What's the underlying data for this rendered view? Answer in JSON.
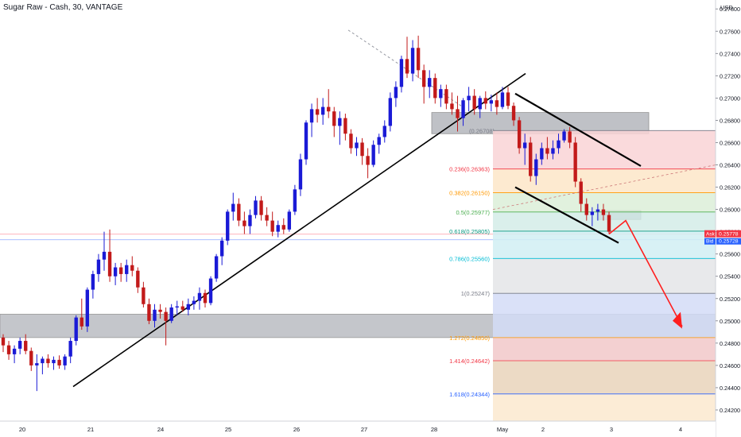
{
  "header": {
    "title": "Sugar Raw - Cash, 30, VANTAGE"
  },
  "price_axis": {
    "currency": "USD",
    "ticks": [
      "0.27800",
      "0.27600",
      "0.27400",
      "0.27200",
      "0.27000",
      "0.26800",
      "0.26600",
      "0.26400",
      "0.26200",
      "0.26000",
      "0.25800",
      "0.25600",
      "0.25400",
      "0.25200",
      "0.25000",
      "0.24800",
      "0.24600",
      "0.24400",
      "0.24200"
    ],
    "ask_label": "Ask",
    "ask_value": "0.25778",
    "bid_label": "Bid",
    "bid_value": "0.25728"
  },
  "time_axis": {
    "ticks": [
      "20",
      "21",
      "24",
      "25",
      "26",
      "27",
      "28",
      "May",
      "2",
      "3",
      "4"
    ]
  },
  "fib_labels": [
    {
      "text": "0.236(0.26363)",
      "color": "#f23645"
    },
    {
      "text": "0.382(0.26150)",
      "color": "#ff9800"
    },
    {
      "text": "0.5(0.25977)",
      "color": "#4caf50"
    },
    {
      "text": "0.618(0.25805)",
      "color": "#089981"
    },
    {
      "text": "0.786(0.25560)",
      "color": "#00bcd4"
    },
    {
      "text": "1(0.25247)",
      "color": "#787b86"
    },
    {
      "text": "1.272(0.24850)",
      "color": "#ff9800"
    },
    {
      "text": "1.414(0.24642)",
      "color": "#f23645"
    },
    {
      "text": "1.618(0.24344)",
      "color": "#2962ff"
    }
  ],
  "zone_label": "(0.26708)",
  "colors": {
    "up": "#1a1ad6",
    "down": "#c21a1a",
    "arrow": "#ff1f1f",
    "zone": "#9598a1"
  },
  "chart_data": {
    "type": "candlestick",
    "title": "Sugar Raw - Cash, 30, VANTAGE",
    "ylim": [
      0.241,
      0.2788
    ],
    "x_labels": [
      "20",
      "21",
      "24",
      "25",
      "26",
      "27",
      "28",
      "May",
      "2",
      "3",
      "4"
    ],
    "candles_ohlc": [
      [
        0.2485,
        0.2488,
        0.2472,
        0.2478
      ],
      [
        0.2478,
        0.2482,
        0.2465,
        0.247
      ],
      [
        0.247,
        0.2478,
        0.2462,
        0.2475
      ],
      [
        0.2475,
        0.2485,
        0.247,
        0.2482
      ],
      [
        0.2482,
        0.2488,
        0.247,
        0.2473
      ],
      [
        0.2473,
        0.2476,
        0.2455,
        0.246
      ],
      [
        0.246,
        0.247,
        0.2437,
        0.2462
      ],
      [
        0.2462,
        0.2468,
        0.2452,
        0.2466
      ],
      [
        0.2466,
        0.247,
        0.2458,
        0.2462
      ],
      [
        0.2462,
        0.2468,
        0.2456,
        0.2465
      ],
      [
        0.2465,
        0.2469,
        0.2457,
        0.246
      ],
      [
        0.246,
        0.247,
        0.2456,
        0.2468
      ],
      [
        0.2468,
        0.2485,
        0.2462,
        0.2482
      ],
      [
        0.2482,
        0.2505,
        0.2478,
        0.2503
      ],
      [
        0.2503,
        0.252,
        0.2492,
        0.2495
      ],
      [
        0.2495,
        0.253,
        0.249,
        0.2528
      ],
      [
        0.2528,
        0.2545,
        0.252,
        0.2542
      ],
      [
        0.2542,
        0.256,
        0.2535,
        0.2555
      ],
      [
        0.2555,
        0.258,
        0.2545,
        0.2562
      ],
      [
        0.2562,
        0.2582,
        0.2535,
        0.254
      ],
      [
        0.254,
        0.2552,
        0.2532,
        0.2548
      ],
      [
        0.2548,
        0.2552,
        0.2535,
        0.2542
      ],
      [
        0.2542,
        0.2555,
        0.2535,
        0.255
      ],
      [
        0.255,
        0.2558,
        0.254,
        0.2545
      ],
      [
        0.2545,
        0.2548,
        0.2525,
        0.253
      ],
      [
        0.253,
        0.2535,
        0.2512,
        0.2515
      ],
      [
        0.2515,
        0.252,
        0.2497,
        0.25
      ],
      [
        0.25,
        0.2515,
        0.2494,
        0.251
      ],
      [
        0.251,
        0.2515,
        0.2502,
        0.2508
      ],
      [
        0.2508,
        0.2512,
        0.2478,
        0.25
      ],
      [
        0.25,
        0.2515,
        0.2498,
        0.2512
      ],
      [
        0.2512,
        0.2518,
        0.2505,
        0.2513
      ],
      [
        0.2513,
        0.2518,
        0.2508,
        0.251
      ],
      [
        0.251,
        0.252,
        0.2505,
        0.2515
      ],
      [
        0.2515,
        0.2522,
        0.251,
        0.2518
      ],
      [
        0.2518,
        0.253,
        0.251,
        0.2525
      ],
      [
        0.2525,
        0.2528,
        0.2512,
        0.2516
      ],
      [
        0.2516,
        0.254,
        0.2514,
        0.2538
      ],
      [
        0.2538,
        0.256,
        0.2535,
        0.2558
      ],
      [
        0.2558,
        0.2575,
        0.255,
        0.2572
      ],
      [
        0.2572,
        0.26,
        0.2568,
        0.2598
      ],
      [
        0.2598,
        0.2615,
        0.259,
        0.2605
      ],
      [
        0.2605,
        0.261,
        0.2585,
        0.259
      ],
      [
        0.259,
        0.2598,
        0.2578,
        0.2585
      ],
      [
        0.2585,
        0.26,
        0.2578,
        0.2595
      ],
      [
        0.2595,
        0.2612,
        0.2592,
        0.2608
      ],
      [
        0.2608,
        0.2612,
        0.259,
        0.2595
      ],
      [
        0.2595,
        0.2602,
        0.2585,
        0.259
      ],
      [
        0.259,
        0.2598,
        0.2576,
        0.258
      ],
      [
        0.258,
        0.259,
        0.2575,
        0.2586
      ],
      [
        0.2586,
        0.2592,
        0.2578,
        0.2582
      ],
      [
        0.2582,
        0.26,
        0.258,
        0.2598
      ],
      [
        0.2598,
        0.2622,
        0.2595,
        0.2618
      ],
      [
        0.2618,
        0.265,
        0.2612,
        0.2645
      ],
      [
        0.2645,
        0.268,
        0.264,
        0.2678
      ],
      [
        0.2678,
        0.2695,
        0.2665,
        0.269
      ],
      [
        0.269,
        0.27,
        0.2678,
        0.2685
      ],
      [
        0.2685,
        0.27,
        0.2676,
        0.2692
      ],
      [
        0.2692,
        0.2708,
        0.2682,
        0.2688
      ],
      [
        0.2688,
        0.2692,
        0.2665,
        0.2675
      ],
      [
        0.2675,
        0.2688,
        0.2658,
        0.2682
      ],
      [
        0.2682,
        0.2686,
        0.2662,
        0.2668
      ],
      [
        0.2668,
        0.2672,
        0.265,
        0.2655
      ],
      [
        0.2655,
        0.2665,
        0.2648,
        0.266
      ],
      [
        0.266,
        0.2664,
        0.264,
        0.2648
      ],
      [
        0.2648,
        0.2655,
        0.2628,
        0.264
      ],
      [
        0.264,
        0.2662,
        0.2638,
        0.2658
      ],
      [
        0.2658,
        0.2668,
        0.265,
        0.2665
      ],
      [
        0.2665,
        0.268,
        0.266,
        0.2675
      ],
      [
        0.2675,
        0.2705,
        0.267,
        0.27
      ],
      [
        0.27,
        0.2715,
        0.2692,
        0.271
      ],
      [
        0.271,
        0.2738,
        0.2705,
        0.2735
      ],
      [
        0.2735,
        0.2755,
        0.2718,
        0.2722
      ],
      [
        0.2722,
        0.2752,
        0.2715,
        0.2745
      ],
      [
        0.2745,
        0.2756,
        0.2718,
        0.2725
      ],
      [
        0.2725,
        0.273,
        0.2695,
        0.271
      ],
      [
        0.271,
        0.2725,
        0.27,
        0.2718
      ],
      [
        0.2718,
        0.2722,
        0.2695,
        0.27
      ],
      [
        0.27,
        0.2712,
        0.2692,
        0.2708
      ],
      [
        0.2708,
        0.2712,
        0.269,
        0.2695
      ],
      [
        0.2695,
        0.2705,
        0.2685,
        0.269
      ],
      [
        0.269,
        0.2702,
        0.267,
        0.2682
      ],
      [
        0.2682,
        0.27,
        0.2675,
        0.2698
      ],
      [
        0.2698,
        0.271,
        0.2688,
        0.2702
      ],
      [
        0.2702,
        0.2708,
        0.2685,
        0.269
      ],
      [
        0.269,
        0.2702,
        0.2682,
        0.27
      ],
      [
        0.27,
        0.2706,
        0.269,
        0.2695
      ],
      [
        0.2695,
        0.2703,
        0.2688,
        0.2698
      ],
      [
        0.2698,
        0.2705,
        0.2685,
        0.2692
      ],
      [
        0.2692,
        0.271,
        0.269,
        0.2705
      ],
      [
        0.2705,
        0.271,
        0.269,
        0.2693
      ],
      [
        0.2693,
        0.2696,
        0.2675,
        0.268
      ],
      [
        0.268,
        0.2683,
        0.265,
        0.2655
      ],
      [
        0.2655,
        0.2668,
        0.264,
        0.266
      ],
      [
        0.266,
        0.2665,
        0.2625,
        0.263
      ],
      [
        0.263,
        0.265,
        0.2622,
        0.2645
      ],
      [
        0.2645,
        0.266,
        0.264,
        0.2655
      ],
      [
        0.2655,
        0.2665,
        0.2645,
        0.265
      ],
      [
        0.265,
        0.2662,
        0.2645,
        0.2655
      ],
      [
        0.2655,
        0.2668,
        0.265,
        0.2662
      ],
      [
        0.2662,
        0.2672,
        0.266,
        0.267
      ],
      [
        0.267,
        0.2674,
        0.2655,
        0.266
      ],
      [
        0.266,
        0.2665,
        0.262,
        0.2625
      ],
      [
        0.2625,
        0.2628,
        0.2598,
        0.2605
      ],
      [
        0.2605,
        0.261,
        0.259,
        0.2595
      ],
      [
        0.2595,
        0.2602,
        0.2585,
        0.2598
      ],
      [
        0.2598,
        0.2605,
        0.259,
        0.26
      ],
      [
        0.26,
        0.2605,
        0.259,
        0.2595
      ],
      [
        0.2595,
        0.2598,
        0.2578,
        0.258
      ]
    ]
  }
}
